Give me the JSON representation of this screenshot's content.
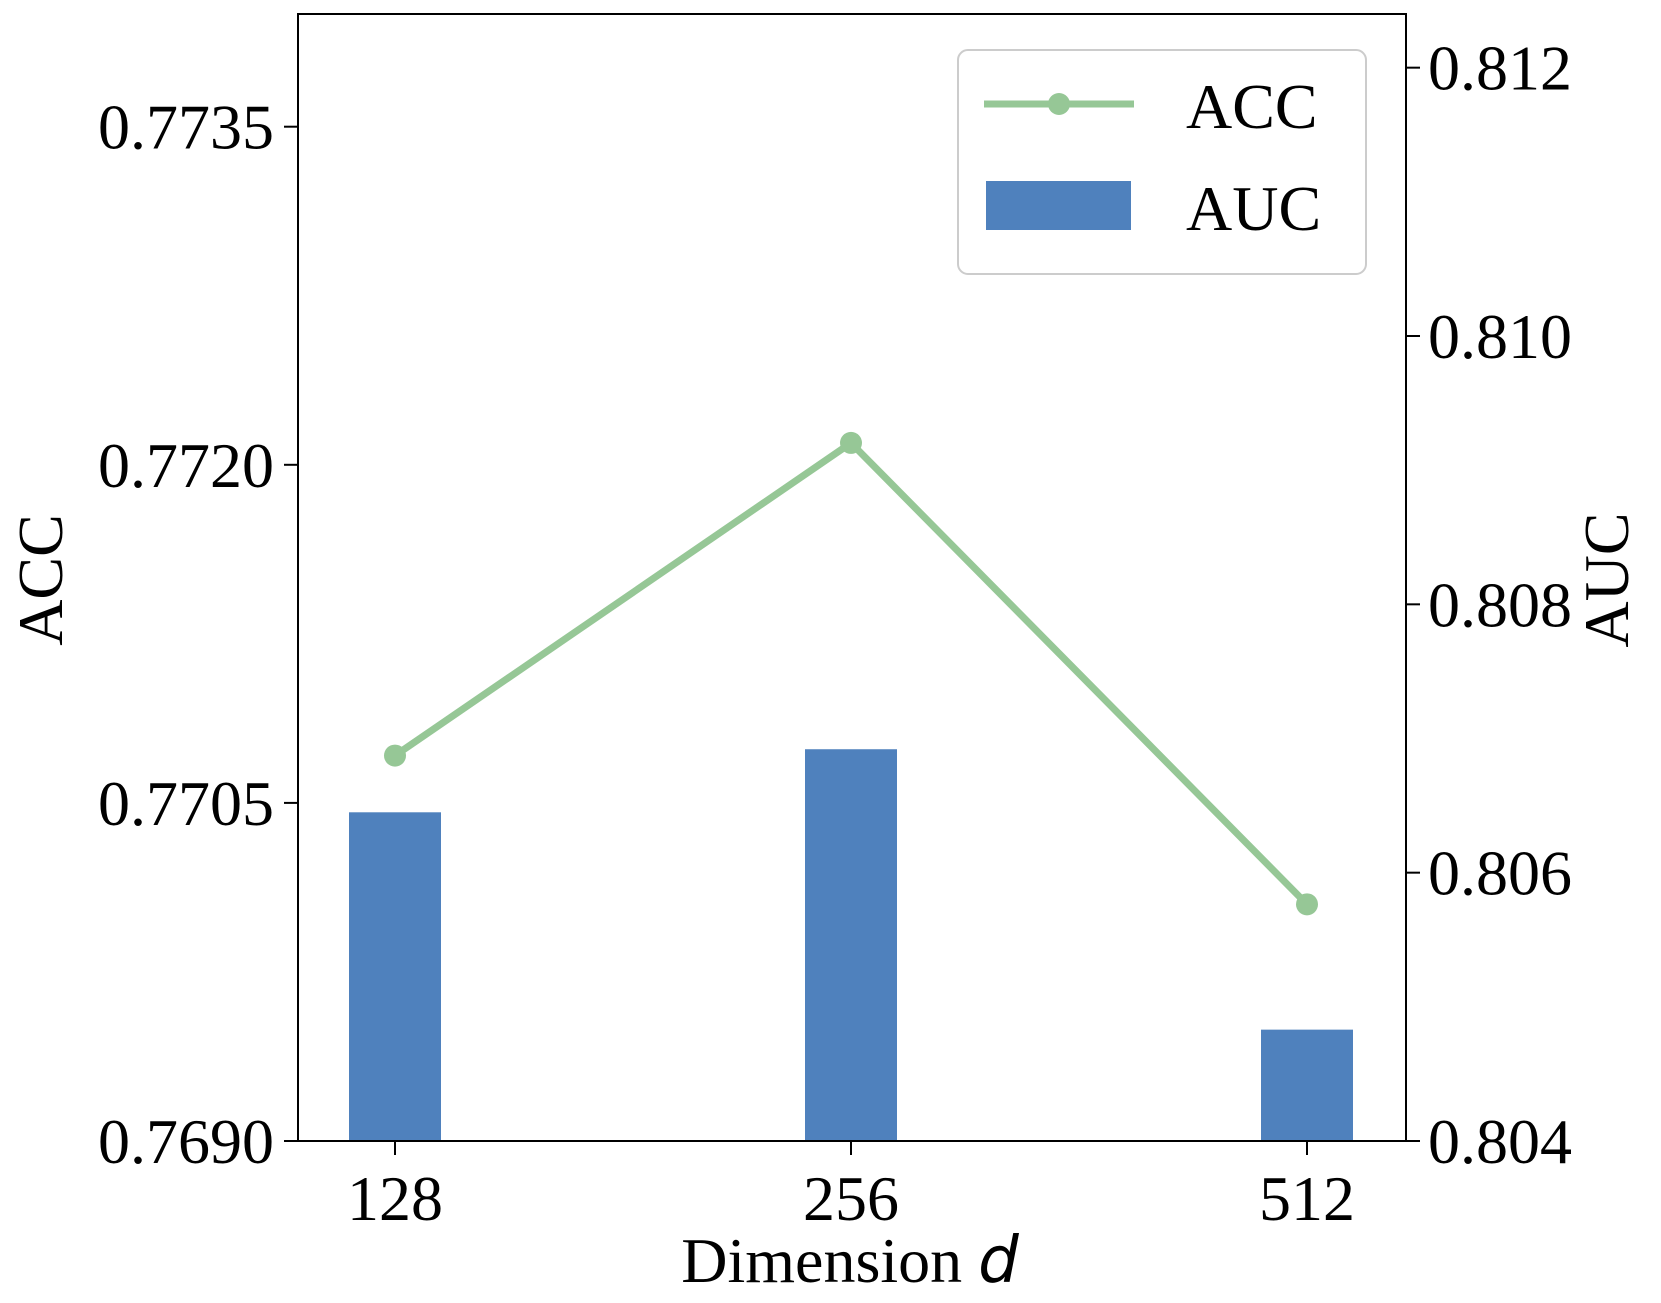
{
  "colors": {
    "acc_line": "#96c796",
    "auc_bar": "#4f81bd",
    "axis": "#000000",
    "legend_border": "#cccccc"
  },
  "chart_data": {
    "type": "bar",
    "x_categories": [
      "128",
      "256",
      "512"
    ],
    "xlabel_prefix": "Dimension ",
    "xlabel_var": "d",
    "ylabel_left": "ACC",
    "ylabel_right": "AUC",
    "left_axis": {
      "ylim": [
        0.769,
        0.774
      ],
      "ticks": [
        0.769,
        0.7705,
        0.772,
        0.7735
      ],
      "tick_labels": [
        "0.7690",
        "0.7705",
        "0.7720",
        "0.7735"
      ]
    },
    "right_axis": {
      "ylim": [
        0.804,
        0.8124
      ],
      "ticks": [
        0.804,
        0.806,
        0.808,
        0.81,
        0.812
      ],
      "tick_labels": [
        "0.804",
        "0.806",
        "0.808",
        "0.810",
        "0.812"
      ]
    },
    "series": [
      {
        "name": "ACC",
        "type": "line",
        "axis": "left",
        "marker": "circle",
        "values": [
          0.77071,
          0.772097,
          0.77005
        ]
      },
      {
        "name": "AUC",
        "type": "bar",
        "axis": "right",
        "values": [
          0.80645,
          0.80692,
          0.80483
        ]
      }
    ],
    "legend": {
      "position": "top-right",
      "entries": [
        "ACC",
        "AUC"
      ]
    }
  }
}
